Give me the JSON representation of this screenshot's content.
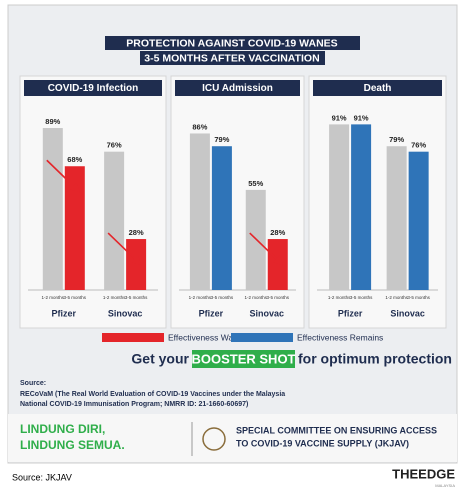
{
  "title_lines": [
    "PROTECTION AGAINST COVID-19 WANES",
    "3-5 MONTHS AFTER VACCINATION"
  ],
  "chart_data": [
    {
      "type": "bar",
      "title": "COVID-19 Infection",
      "categories": [
        "Pfizer",
        "Sinovac"
      ],
      "ylim": [
        0,
        100
      ],
      "series": [
        {
          "name": "1-2 months",
          "color": "#c7c7c7",
          "values": [
            89,
            76
          ],
          "value_labels": [
            "89%",
            "76%"
          ]
        },
        {
          "name": "3-5 months",
          "colors": [
            "#e4252a",
            "#e4252a"
          ],
          "values": [
            68,
            28
          ],
          "value_labels": [
            "68%",
            "28%"
          ]
        }
      ]
    },
    {
      "type": "bar",
      "title": "ICU Admission",
      "categories": [
        "Pfizer",
        "Sinovac"
      ],
      "ylim": [
        0,
        100
      ],
      "series": [
        {
          "name": "1-2 months",
          "color": "#c7c7c7",
          "values": [
            86,
            55
          ],
          "value_labels": [
            "86%",
            "55%"
          ]
        },
        {
          "name": "3-5 months",
          "colors": [
            "#2f74b8",
            "#e4252a"
          ],
          "values": [
            79,
            28
          ],
          "value_labels": [
            "79%",
            "28%"
          ]
        }
      ]
    },
    {
      "type": "bar",
      "title": "Death",
      "categories": [
        "Pfizer",
        "Sinovac"
      ],
      "ylim": [
        0,
        100
      ],
      "series": [
        {
          "name": "1-2 months",
          "color": "#c7c7c7",
          "values": [
            91,
            79
          ],
          "value_labels": [
            "91%",
            "79%"
          ]
        },
        {
          "name": "3-5 months",
          "colors": [
            "#2f74b8",
            "#2f74b8"
          ],
          "values": [
            91,
            76
          ],
          "value_labels": [
            "91%",
            "76%"
          ]
        }
      ]
    }
  ],
  "legend": [
    {
      "name": "Effectiveness Wanes",
      "color": "#e4252a"
    },
    {
      "name": "Effectiveness Remains",
      "color": "#2f74b8"
    }
  ],
  "booster": {
    "before": "Get your",
    "highlight": "BOOSTER SHOT",
    "after": "for optimum protection"
  },
  "source": {
    "heading": "Source:",
    "lines": [
      "RECoVaM (The Real World Evaluation of COVID-19 Vaccines under the Malaysia",
      "National COVID-19 Immunisation Program; NMRR ID: 21-1660-60697)"
    ]
  },
  "footer": {
    "slogan": [
      "LINDUNG DIRI,",
      "LINDUNG SEMUA."
    ],
    "committee": [
      "SPECIAL COMMITTEE ON ENSURING ACCESS",
      "TO COVID-19 VACCINE SUPPLY (JKJAV)"
    ]
  },
  "credit": "Source: JKJAV",
  "brand": {
    "name": "THEEDGE",
    "region": "MALAYSIA"
  }
}
